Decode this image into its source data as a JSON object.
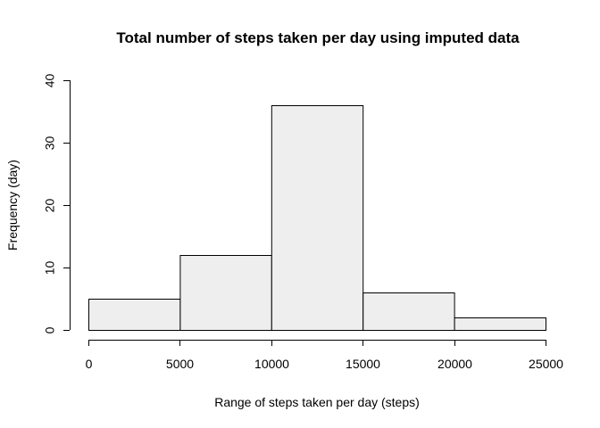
{
  "chart_data": {
    "type": "bar",
    "title": "Total number of steps taken per day using imputed data",
    "xlabel": "Range of steps taken per day (steps)",
    "ylabel": "Frequency (day)",
    "bins": [
      {
        "start": 0,
        "end": 5000,
        "value": 5
      },
      {
        "start": 5000,
        "end": 10000,
        "value": 12
      },
      {
        "start": 10000,
        "end": 15000,
        "value": 36
      },
      {
        "start": 15000,
        "end": 20000,
        "value": 6
      },
      {
        "start": 20000,
        "end": 25000,
        "value": 2
      }
    ],
    "xlim": [
      0,
      25000
    ],
    "ylim": [
      0,
      40
    ],
    "xticks": [
      0,
      5000,
      10000,
      15000,
      20000,
      25000
    ],
    "yticks": [
      0,
      10,
      20,
      30,
      40
    ],
    "grid": false,
    "bar_fill": "#eeeeee",
    "bar_stroke": "#000000"
  }
}
